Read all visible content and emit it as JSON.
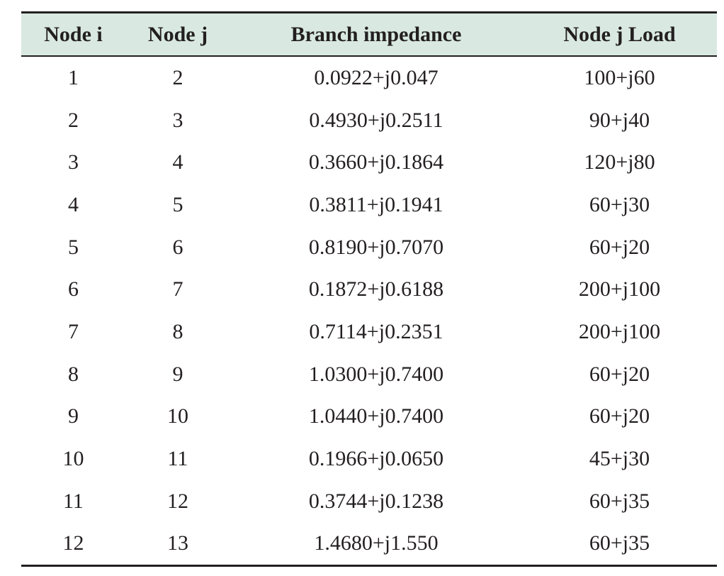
{
  "table": {
    "headers": [
      "Node i",
      "Node j",
      "Branch impedance",
      "Node j Load"
    ],
    "rows": [
      [
        "1",
        "2",
        "0.0922+j0.047",
        "100+j60"
      ],
      [
        "2",
        "3",
        "0.4930+j0.2511",
        "90+j40"
      ],
      [
        "3",
        "4",
        "0.3660+j0.1864",
        "120+j80"
      ],
      [
        "4",
        "5",
        "0.3811+j0.1941",
        "60+j30"
      ],
      [
        "5",
        "6",
        "0.8190+j0.7070",
        "60+j20"
      ],
      [
        "6",
        "7",
        "0.1872+j0.6188",
        "200+j100"
      ],
      [
        "7",
        "8",
        "0.7114+j0.2351",
        "200+j100"
      ],
      [
        "8",
        "9",
        "1.0300+j0.7400",
        "60+j20"
      ],
      [
        "9",
        "10",
        "1.0440+j0.7400",
        "60+j20"
      ],
      [
        "10",
        "11",
        "0.1966+j0.0650",
        "45+j30"
      ],
      [
        "11",
        "12",
        "0.3744+j0.1238",
        "60+j35"
      ],
      [
        "12",
        "13",
        "1.4680+j1.550",
        "60+j35"
      ]
    ],
    "colors": {
      "header_background": "#d9e9e1",
      "rule": "#231f20",
      "text": "#231f20"
    }
  }
}
